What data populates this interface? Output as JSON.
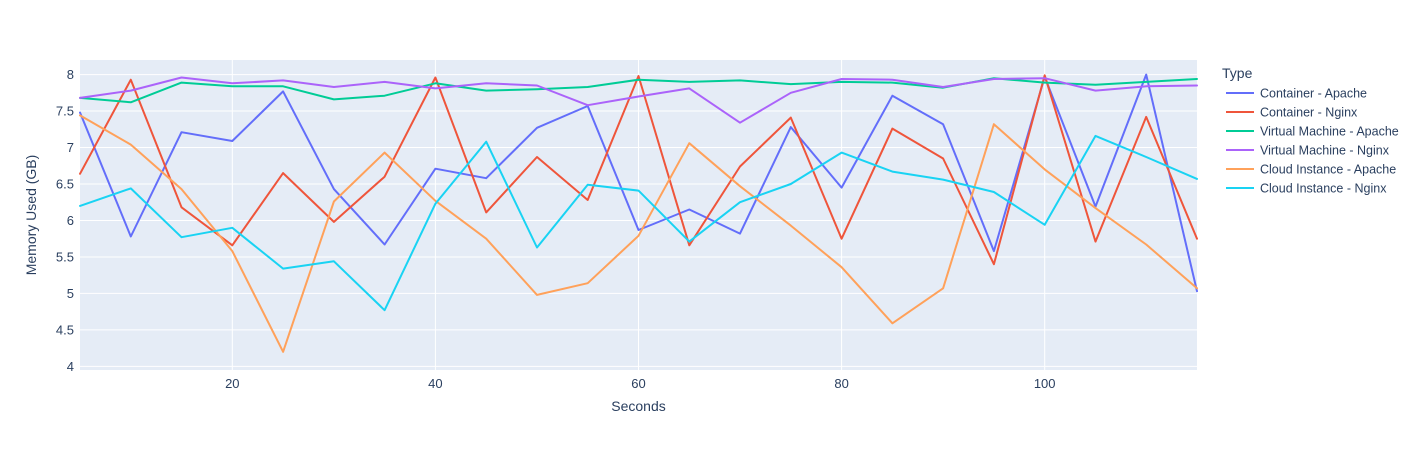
{
  "chart_data": {
    "type": "line",
    "title": "",
    "xlabel": "Seconds",
    "ylabel": "Memory Used (GB)",
    "xlim": [
      5,
      115
    ],
    "ylim": [
      3.95,
      8.2
    ],
    "xticks": [
      20,
      40,
      60,
      80,
      100
    ],
    "yticks": [
      4,
      4.5,
      5,
      5.5,
      6,
      6.5,
      7,
      7.5,
      8
    ],
    "ytick_labels": [
      "4",
      "4.5",
      "5",
      "5.5",
      "6",
      "6.5",
      "7",
      "7.5",
      "8"
    ],
    "grid": true,
    "plot_background": "#e5ecf6",
    "legend": {
      "title": "Type",
      "position": "right"
    },
    "x": [
      5,
      10,
      15,
      20,
      25,
      30,
      35,
      40,
      45,
      50,
      55,
      60,
      65,
      70,
      75,
      80,
      85,
      90,
      95,
      100,
      105,
      110,
      115
    ],
    "series": [
      {
        "name": "Container - Apache",
        "color": "#636efa",
        "values": [
          7.48,
          5.78,
          7.21,
          7.09,
          7.77,
          6.43,
          5.67,
          6.71,
          6.58,
          7.27,
          7.57,
          5.87,
          6.15,
          5.82,
          7.28,
          6.45,
          7.71,
          7.32,
          5.58,
          7.97,
          6.19,
          8.0,
          5.03
        ]
      },
      {
        "name": "Container - Nginx",
        "color": "#ef553b",
        "values": [
          6.64,
          7.93,
          6.18,
          5.66,
          6.65,
          5.98,
          6.6,
          7.96,
          6.11,
          6.87,
          6.28,
          7.98,
          5.66,
          6.74,
          7.41,
          5.75,
          7.26,
          6.85,
          5.4,
          7.99,
          5.71,
          7.42,
          5.75
        ]
      },
      {
        "name": "Virtual Machine - Apache",
        "color": "#00cc96",
        "values": [
          7.68,
          7.62,
          7.89,
          7.84,
          7.84,
          7.66,
          7.71,
          7.88,
          7.78,
          7.8,
          7.83,
          7.93,
          7.9,
          7.92,
          7.87,
          7.9,
          7.89,
          7.82,
          7.95,
          7.89,
          7.86,
          7.9,
          7.94
        ]
      },
      {
        "name": "Virtual Machine - Nginx",
        "color": "#ab63fa",
        "values": [
          7.68,
          7.78,
          7.96,
          7.88,
          7.92,
          7.83,
          7.9,
          7.81,
          7.88,
          7.85,
          7.58,
          7.7,
          7.81,
          7.34,
          7.75,
          7.94,
          7.93,
          7.83,
          7.94,
          7.95,
          7.78,
          7.84,
          7.85
        ]
      },
      {
        "name": "Cloud Instance - Apache",
        "color": "#ffa15a",
        "values": [
          7.44,
          7.04,
          6.43,
          5.58,
          4.2,
          6.26,
          6.93,
          6.27,
          5.75,
          4.98,
          5.14,
          5.79,
          7.06,
          6.47,
          5.93,
          5.36,
          4.59,
          5.07,
          7.32,
          6.7,
          6.17,
          5.67,
          5.07
        ]
      },
      {
        "name": "Cloud Instance - Nginx",
        "color": "#19d3f3",
        "values": [
          6.2,
          6.44,
          5.77,
          5.9,
          5.34,
          5.44,
          4.77,
          6.23,
          7.08,
          5.63,
          6.49,
          6.41,
          5.71,
          6.25,
          6.5,
          6.93,
          6.67,
          6.56,
          6.39,
          5.94,
          7.16,
          6.87,
          6.57
        ]
      }
    ]
  }
}
